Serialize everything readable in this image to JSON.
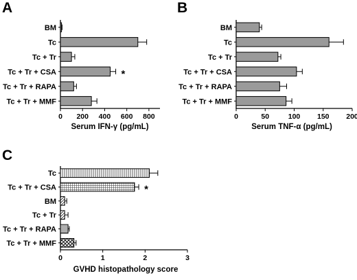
{
  "chart_data": [
    {
      "panel": "A",
      "type": "bar",
      "orientation": "horizontal",
      "categories": [
        "BM",
        "Tc",
        "Tc + Tr",
        "Tc + Tr + CSA",
        "Tc + Tr + RAPA",
        "Tc + Tr + MMF"
      ],
      "values": [
        10,
        700,
        100,
        450,
        120,
        280
      ],
      "errors": [
        5,
        80,
        30,
        50,
        25,
        50
      ],
      "xlabel": "Serum IFN-γ (pg/mL)",
      "xlim": [
        0,
        900
      ],
      "xticks": [
        "0",
        "200",
        "400",
        "600",
        "800"
      ],
      "tick_values": [
        0,
        200,
        400,
        600,
        800
      ],
      "annotations": [
        {
          "category": "Tc + Tr + CSA",
          "text": "*"
        }
      ],
      "fill": "gray"
    },
    {
      "panel": "B",
      "type": "bar",
      "orientation": "horizontal",
      "categories": [
        "BM",
        "Tc",
        "Tc + Tr",
        "Tc + Tr + CSA",
        "Tc + Tr + RAPA",
        "Tc + Tr + MMF"
      ],
      "values": [
        40,
        160,
        72,
        104,
        75,
        86
      ],
      "errors": [
        4,
        25,
        5,
        10,
        12,
        10
      ],
      "xlabel": "Serum TNF-α (pg/mL)",
      "xlim": [
        0,
        200
      ],
      "xticks": [
        "0",
        "50",
        "100",
        "150",
        "200"
      ],
      "tick_values": [
        0,
        50,
        100,
        150,
        200
      ],
      "annotations": [],
      "fill": "gray"
    },
    {
      "panel": "C",
      "type": "bar",
      "orientation": "horizontal",
      "categories": [
        "Tc",
        "Tc + Tr + CSA",
        "BM",
        "Tc + Tr",
        "Tc + Tr + RAPA",
        "Tc + Tr + MMF"
      ],
      "values": [
        2.1,
        1.75,
        0.1,
        0.1,
        0.18,
        0.32
      ],
      "errors": [
        0.2,
        0.1,
        0.05,
        0.08,
        0.03,
        0.05
      ],
      "xlabel": "GVHD histopathology score",
      "xlim": [
        0,
        3
      ],
      "xticks": [
        "0",
        "1",
        "2",
        "3"
      ],
      "tick_values": [
        0,
        1,
        2,
        3
      ],
      "annotations": [
        {
          "category": "Tc + Tr + CSA",
          "text": "*"
        }
      ],
      "fill": "patterned"
    }
  ]
}
